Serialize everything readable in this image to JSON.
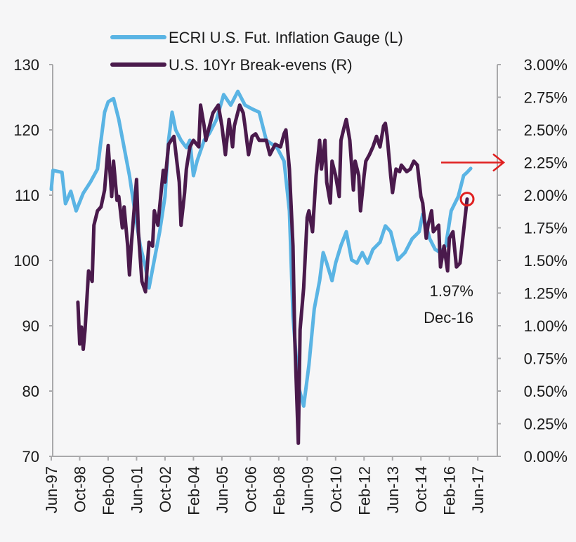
{
  "chart_data": {
    "type": "line",
    "title": "",
    "legend_position": "top",
    "grid": false,
    "x_tick_labels": [
      "Jun-97",
      "Oct-98",
      "Feb-00",
      "Jun-01",
      "Oct-02",
      "Feb-04",
      "Jun-05",
      "Oct-06",
      "Feb-08",
      "Jun-09",
      "Oct-10",
      "Feb-12",
      "Jun-13",
      "Oct-14",
      "Feb-16",
      "Jun-17"
    ],
    "xlim": [
      "1997-06",
      "2017-09"
    ],
    "y_left": {
      "ylim": [
        70,
        130
      ],
      "tick_labels": [
        "70",
        "80",
        "90",
        "100",
        "110",
        "120",
        "130"
      ]
    },
    "y_right": {
      "ylim": [
        0,
        3
      ],
      "tick_labels": [
        "0.00%",
        "0.25%",
        "0.50%",
        "0.75%",
        "1.00%",
        "1.25%",
        "1.50%",
        "1.75%",
        "2.00%",
        "2.25%",
        "2.50%",
        "2.75%",
        "3.00%"
      ]
    },
    "series": [
      {
        "name": "ECRI U.S. Fut. Inflation Gauge (L)",
        "axis": "left",
        "color": "#5ab4e4",
        "x": [
          "1997-06",
          "1997-07",
          "1997-12",
          "1998-02",
          "1998-05",
          "1998-08",
          "1998-12",
          "1999-04",
          "1999-08",
          "1999-10",
          "1999-12",
          "2000-02",
          "2000-05",
          "2000-08",
          "2000-11",
          "2001-02",
          "2001-05",
          "2001-08",
          "2001-11",
          "2002-01",
          "2002-04",
          "2002-07",
          "2002-10",
          "2002-12",
          "2003-02",
          "2003-04",
          "2003-07",
          "2003-10",
          "2003-12",
          "2004-02",
          "2004-04",
          "2004-08",
          "2004-11",
          "2005-03",
          "2005-07",
          "2005-11",
          "2006-03",
          "2006-07",
          "2006-11",
          "2007-03",
          "2007-07",
          "2008-01",
          "2008-05",
          "2008-08",
          "2008-10",
          "2009-01",
          "2009-04",
          "2009-07",
          "2009-10",
          "2010-01",
          "2010-03",
          "2010-05",
          "2010-08",
          "2010-10",
          "2011-01",
          "2011-04",
          "2011-07",
          "2011-10",
          "2012-01",
          "2012-04",
          "2012-07",
          "2012-11",
          "2013-02",
          "2013-05",
          "2013-09",
          "2014-01",
          "2014-05",
          "2014-09",
          "2014-11",
          "2015-03",
          "2015-06",
          "2015-09",
          "2015-12",
          "2016-03",
          "2016-07",
          "2016-10",
          "2016-12",
          "2017-02"
        ],
        "values": [
          110.9,
          113.8,
          113.5,
          108.7,
          110.6,
          107.6,
          110.3,
          112,
          114,
          118.4,
          122.7,
          124.3,
          124.8,
          121.6,
          117.3,
          113,
          107.6,
          102.3,
          99,
          95.8,
          100.1,
          104.4,
          109.8,
          118.4,
          122.7,
          120,
          118.4,
          117.3,
          118.4,
          113,
          115.2,
          118.4,
          119.5,
          121.6,
          125.4,
          123.8,
          125.9,
          123.8,
          123.2,
          122.7,
          118.4,
          117.3,
          115.2,
          107.6,
          91.5,
          80.8,
          77.7,
          84,
          92.6,
          96.9,
          101.2,
          99.6,
          96.9,
          99.6,
          102.3,
          104.4,
          100.1,
          99.6,
          101.2,
          99.6,
          101.7,
          102.8,
          105.3,
          104.4,
          100.1,
          101.2,
          103.3,
          104.4,
          107.1,
          103.3,
          101.7,
          101.2,
          102.3,
          107.6,
          109.8,
          113,
          113.5,
          114.1
        ]
      },
      {
        "name": "U.S. 10Yr Break-evens (R)",
        "axis": "right",
        "color": "#4a1a4c",
        "x": [
          "1998-09",
          "1998-10",
          "1998-11",
          "1998-12",
          "1999-01",
          "1999-03",
          "1999-05",
          "1999-06",
          "1999-08",
          "1999-10",
          "1999-12",
          "2000-02",
          "2000-04",
          "2000-05",
          "2000-07",
          "2000-08",
          "2000-10",
          "2000-11",
          "2001-01",
          "2001-02",
          "2001-03",
          "2001-06",
          "2001-07",
          "2001-09",
          "2001-11",
          "2002-01",
          "2002-03",
          "2002-04",
          "2002-06",
          "2002-09",
          "2002-10",
          "2002-12",
          "2003-03",
          "2003-06",
          "2003-07",
          "2003-09",
          "2003-10",
          "2003-12",
          "2004-02",
          "2004-05",
          "2004-06",
          "2004-08",
          "2004-09",
          "2004-12",
          "2005-01",
          "2005-04",
          "2005-06",
          "2005-08",
          "2005-10",
          "2005-12",
          "2006-01",
          "2006-04",
          "2006-06",
          "2006-07",
          "2006-09",
          "2006-11",
          "2007-01",
          "2007-03",
          "2007-07",
          "2007-09",
          "2007-12",
          "2008-03",
          "2008-05",
          "2008-06",
          "2008-08",
          "2008-10",
          "2008-11",
          "2009-01",
          "2009-02",
          "2009-04",
          "2009-06",
          "2009-07",
          "2009-09",
          "2009-11",
          "2010-01",
          "2010-02",
          "2010-04",
          "2010-05",
          "2010-07",
          "2010-08",
          "2010-10",
          "2010-12",
          "2011-01",
          "2011-03",
          "2011-04",
          "2011-06",
          "2011-08",
          "2011-09",
          "2011-11",
          "2011-12",
          "2012-02",
          "2012-03",
          "2012-05",
          "2012-07",
          "2012-09",
          "2012-11",
          "2013-01",
          "2013-02",
          "2013-03",
          "2013-05",
          "2013-06",
          "2013-08",
          "2013-10",
          "2013-11",
          "2014-02",
          "2014-04",
          "2014-06",
          "2014-08",
          "2014-10",
          "2014-11",
          "2015-01",
          "2015-02",
          "2015-04",
          "2015-05",
          "2015-08",
          "2015-09",
          "2015-11",
          "2016-01",
          "2016-02",
          "2016-04",
          "2016-06",
          "2016-08",
          "2016-12"
        ],
        "values": [
          1.18,
          0.86,
          0.99,
          0.82,
          0.97,
          1.42,
          1.34,
          1.77,
          1.88,
          1.91,
          2.04,
          2.38,
          1.99,
          2.26,
          1.96,
          1.99,
          1.75,
          1.91,
          1.61,
          1.39,
          1.61,
          2.12,
          1.72,
          1.34,
          1.26,
          1.64,
          1.61,
          1.88,
          1.77,
          2.19,
          2.1,
          2.39,
          2.45,
          2.1,
          1.77,
          2.02,
          2.2,
          2.37,
          2.42,
          2.37,
          2.69,
          2.53,
          2.42,
          2.58,
          2.63,
          2.69,
          2.53,
          2.31,
          2.58,
          2.37,
          2.53,
          2.69,
          2.63,
          2.53,
          2.31,
          2.45,
          2.47,
          2.42,
          2.42,
          2.31,
          2.39,
          2.37,
          2.47,
          2.5,
          2.2,
          1.61,
          0.91,
          0.1,
          0.97,
          1.29,
          1.83,
          1.88,
          1.72,
          2.15,
          2.42,
          2.2,
          2.42,
          2.1,
          1.94,
          2.26,
          2.15,
          1.99,
          2.42,
          2.53,
          2.58,
          2.42,
          2.04,
          2.26,
          2.15,
          1.88,
          2.15,
          2.26,
          2.31,
          2.37,
          2.45,
          2.37,
          2.53,
          2.55,
          2.45,
          2.15,
          2.02,
          2.2,
          2.18,
          2.23,
          2.18,
          2.2,
          2.26,
          2.23,
          1.99,
          1.94,
          1.67,
          1.77,
          1.88,
          1.72,
          1.77,
          1.45,
          1.61,
          1.42,
          1.67,
          1.72,
          1.45,
          1.48,
          1.97
        ]
      }
    ],
    "annotations": {
      "callout_value": "1.97%",
      "callout_date": "Dec-16",
      "callout_point": {
        "x": "2016-12",
        "value": 1.97,
        "axis": "right"
      },
      "arrow_target_value": 2.25,
      "arrow_color": "#e02020"
    }
  }
}
